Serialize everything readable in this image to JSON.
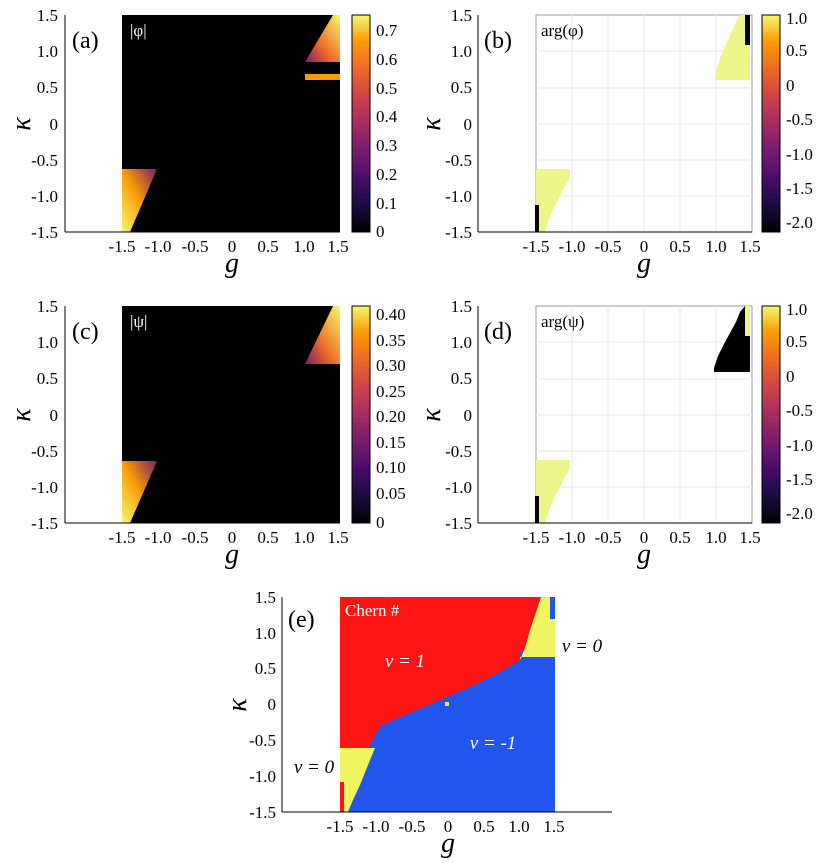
{
  "chart_data": [
    {
      "type": "heatmap",
      "panel_label": "(a)",
      "inset_label": "|φ|",
      "xlabel": "g",
      "ylabel": "κ",
      "xticks": [
        "-1.5",
        "-1.0",
        "-0.5",
        "0",
        "0.5",
        "1.0",
        "1.5"
      ],
      "yticks": [
        "1.5",
        "1.0",
        "0.5",
        "0",
        "-0.5",
        "-1.0",
        "-1.5"
      ],
      "colorbar_ticks": [
        "0.7",
        "0.6",
        "0.5",
        "0.4",
        "0.3",
        "0.2",
        "0.1",
        "0"
      ],
      "colorbar_range": [
        0,
        0.75
      ],
      "colormap": "inferno",
      "x_range": [
        -2.0,
        1.6
      ],
      "y_range": [
        -1.5,
        1.5
      ]
    },
    {
      "type": "heatmap",
      "panel_label": "(b)",
      "inset_label": "arg(φ)",
      "xlabel": "g",
      "ylabel": "κ",
      "xticks": [
        "-1.5",
        "-1.0",
        "-0.5",
        "0",
        "0.5",
        "1.0",
        "1.5"
      ],
      "yticks": [
        "1.5",
        "1.0",
        "0.5",
        "0",
        "-0.5",
        "-1.0",
        "-1.5"
      ],
      "colorbar_ticks": [
        "1.0",
        "0.5",
        "0",
        "-0.5",
        "-1.0",
        "-1.5",
        "-2.0"
      ],
      "colorbar_range": [
        -2.1,
        1.1
      ],
      "colormap": "inferno",
      "x_range": [
        -2.0,
        1.6
      ],
      "y_range": [
        -1.5,
        1.5
      ]
    },
    {
      "type": "heatmap",
      "panel_label": "(c)",
      "inset_label": "|ψ|",
      "xlabel": "g",
      "ylabel": "κ",
      "xticks": [
        "-1.5",
        "-1.0",
        "-0.5",
        "0",
        "0.5",
        "1.0",
        "1.5"
      ],
      "yticks": [
        "1.5",
        "1.0",
        "0.5",
        "0",
        "-0.5",
        "-1.0",
        "-1.5"
      ],
      "colorbar_ticks": [
        "0.40",
        "0.35",
        "0.30",
        "0.25",
        "0.20",
        "0.15",
        "0.10",
        "0.05",
        "0"
      ],
      "colorbar_range": [
        0,
        0.42
      ],
      "colormap": "inferno",
      "x_range": [
        -2.0,
        1.6
      ],
      "y_range": [
        -1.5,
        1.5
      ]
    },
    {
      "type": "heatmap",
      "panel_label": "(d)",
      "inset_label": "arg(ψ)",
      "xlabel": "g",
      "ylabel": "κ",
      "xticks": [
        "-1.5",
        "-1.0",
        "-0.5",
        "0",
        "0.5",
        "1.0",
        "1.5"
      ],
      "yticks": [
        "1.5",
        "1.0",
        "0.5",
        "0",
        "-0.5",
        "-1.0",
        "-1.5"
      ],
      "colorbar_ticks": [
        "1.0",
        "0.5",
        "0",
        "-0.5",
        "-1.0",
        "-1.5",
        "-2.0"
      ],
      "colorbar_range": [
        -2.1,
        1.1
      ],
      "colormap": "inferno",
      "x_range": [
        -2.0,
        1.6
      ],
      "y_range": [
        -1.5,
        1.5
      ]
    },
    {
      "type": "heatmap",
      "panel_label": "(e)",
      "inset_label": "Chern #",
      "xlabel": "g",
      "ylabel": "κ",
      "xticks": [
        "-1.5",
        "-1.0",
        "-0.5",
        "0",
        "0.5",
        "1.0",
        "1.5"
      ],
      "yticks": [
        "1.5",
        "1.0",
        "0.5",
        "0",
        "-0.5",
        "-1.0",
        "-1.5"
      ],
      "x_range": [
        -2.0,
        2.0
      ],
      "y_range": [
        -1.5,
        1.5
      ],
      "region_labels": [
        "v = 1",
        "v = -1",
        "v = 0",
        "v = 0"
      ],
      "colors": {
        "v1": "#ff1414",
        "vneg1": "#2255ee",
        "v0": "#eef55e"
      }
    }
  ]
}
